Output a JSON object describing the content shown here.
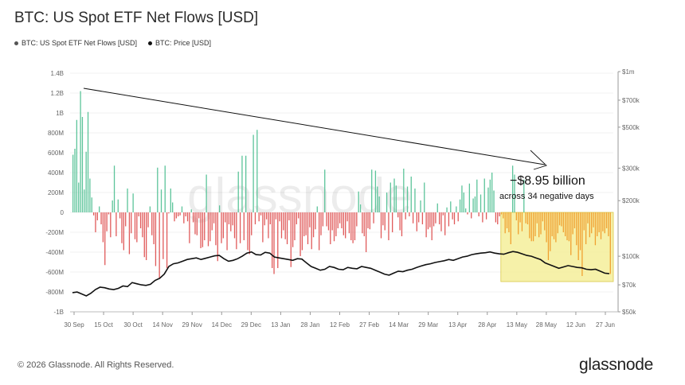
{
  "title": "BTC: US Spot ETF Net Flows [USD]",
  "legend": [
    {
      "label": "BTC: US Spot ETF Net Flows [USD]",
      "color": "#555555"
    },
    {
      "label": "BTC: Price [USD]",
      "color": "#111111"
    }
  ],
  "footer": "© 2026 Glassnode. All Rights Reserved.",
  "brand": "glassnode",
  "watermark": "glassnode",
  "annotation": {
    "main": "−$8.95 billion",
    "sub": "across 34 negative days"
  },
  "colors": {
    "positive": "#5cc49a",
    "negative": "#e05a5a",
    "highlight_bar": "#f0a030",
    "highlight_box": "#f5ef9a",
    "price": "#111111"
  },
  "chart_data": {
    "type": "bar",
    "title": "BTC: US Spot ETF Net Flows [USD]",
    "x_ticks": [
      "30 Sep",
      "15 Oct",
      "30 Oct",
      "14 Nov",
      "29 Nov",
      "14 Dec",
      "29 Dec",
      "13 Jan",
      "28 Jan",
      "12 Feb",
      "27 Feb",
      "14 Mar",
      "29 Mar",
      "13 Apr",
      "28 Apr",
      "13 May",
      "28 May",
      "12 Jun",
      "27 Jun"
    ],
    "y_left_ticks": [
      "1.4B",
      "1.2B",
      "1B",
      "800M",
      "600M",
      "400M",
      "200M",
      "0",
      "-200M",
      "-400M",
      "-600M",
      "-800M",
      "-1B"
    ],
    "y_left_range": [
      -1000000000,
      1400000000
    ],
    "y_right_ticks": [
      "$1m",
      "$700k",
      "$500k",
      "$300k",
      "$200k",
      "$100k",
      "$70k",
      "$50k"
    ],
    "y_right_scale": "log",
    "y_right_range": [
      50000,
      1000000
    ],
    "flows_musd": [
      580,
      640,
      930,
      300,
      1220,
      960,
      230,
      610,
      1010,
      340,
      150,
      -30,
      -200,
      -80,
      60,
      -120,
      -300,
      -530,
      -190,
      -20,
      -250,
      120,
      470,
      -240,
      130,
      -60,
      -310,
      -380,
      -140,
      240,
      -420,
      -210,
      190,
      -270,
      -300,
      -40,
      -160,
      -250,
      -450,
      -480,
      -150,
      60,
      -230,
      -320,
      -540,
      450,
      -670,
      230,
      -470,
      470,
      -560,
      -10,
      240,
      100,
      -90,
      -60,
      -40,
      -30,
      60,
      -110,
      -40,
      -90,
      -310,
      30,
      -100,
      -220,
      -230,
      -60,
      -360,
      -350,
      -280,
      380,
      -340,
      -290,
      -180,
      -110,
      -330,
      -490,
      70,
      -310,
      -260,
      -100,
      -380,
      -120,
      -190,
      -130,
      -260,
      -370,
      410,
      -310,
      570,
      -280,
      570,
      -380,
      -420,
      -230,
      780,
      -120,
      830,
      -90,
      -30,
      -300,
      -130,
      -70,
      -260,
      -120,
      -560,
      -620,
      -70,
      -560,
      -90,
      -260,
      -180,
      -270,
      -320,
      -80,
      -550,
      -350,
      -280,
      -120,
      -60,
      -440,
      -380,
      -240,
      -230,
      -320,
      -150,
      -370,
      -250,
      -170,
      60,
      -380,
      -230,
      -140,
      430,
      -140,
      -180,
      -320,
      -180,
      -290,
      -240,
      -160,
      -110,
      -160,
      -230,
      -260,
      -90,
      -210,
      -280,
      -310,
      -280,
      -140,
      210,
      80,
      -210,
      -240,
      -400,
      -160,
      -170,
      430,
      -110,
      420,
      260,
      160,
      -260,
      -130,
      -180,
      200,
      -280,
      300,
      -200,
      340,
      270,
      -50,
      -180,
      -240,
      440,
      -70,
      260,
      -40,
      360,
      -110,
      240,
      -190,
      -100,
      120,
      -120,
      300,
      -250,
      -170,
      -150,
      -280,
      -140,
      -110,
      90,
      -120,
      -190,
      -30,
      -230,
      50,
      -140,
      110,
      -70,
      -120,
      60,
      -90,
      130,
      270,
      200,
      40,
      -20,
      290,
      -60,
      140,
      160,
      330,
      -40,
      180,
      -100,
      340,
      -70,
      250,
      330,
      400,
      220,
      -100,
      -120,
      -40,
      -20,
      -60,
      -210,
      -160,
      -200,
      -320,
      470,
      380,
      -80,
      -220,
      -100,
      -190,
      330,
      -110,
      -120,
      -260,
      -290,
      -290,
      -240,
      -110,
      -250,
      -220,
      -90,
      -180,
      -300,
      -480,
      -390,
      -240,
      -270,
      -300,
      -210,
      -130,
      -140,
      -200,
      -240,
      -280,
      -290,
      -430,
      -220,
      -160,
      -330,
      -480,
      -380,
      -640,
      -180,
      -320,
      -110,
      -250,
      -210,
      -150,
      -330,
      -240,
      -200,
      -270,
      -190,
      -210,
      -160,
      -240,
      -620
    ],
    "price_usd": [
      63500,
      64000,
      62500,
      61000,
      63000,
      66000,
      68000,
      67500,
      66500,
      66000,
      67000,
      69000,
      68500,
      72000,
      71000,
      70000,
      69500,
      70500,
      74000,
      76000,
      80000,
      88000,
      91000,
      92000,
      94000,
      96000,
      97000,
      98000,
      96000,
      97500,
      99000,
      100500,
      101000,
      97000,
      94000,
      95000,
      97000,
      100000,
      104000,
      105500,
      102000,
      101500,
      105000,
      104000,
      99000,
      98000,
      97000,
      96000,
      95000,
      97000,
      96500,
      92000,
      88000,
      86000,
      84000,
      85000,
      88000,
      87000,
      85000,
      84500,
      87000,
      86000,
      85500,
      88000,
      87000,
      86000,
      84000,
      82000,
      80000,
      79000,
      81000,
      83000,
      82500,
      84000,
      85000,
      87000,
      88500,
      90000,
      91000,
      92500,
      93500,
      94500,
      96000,
      95000,
      97000,
      99000,
      100000,
      102000,
      103000,
      104000,
      104500,
      105500,
      104000,
      103000,
      102500,
      104500,
      106000,
      105000,
      103000,
      101000,
      100000,
      98000,
      96000,
      92000,
      90000,
      88000,
      86000,
      87500,
      89000,
      88000,
      87000,
      86500,
      85000,
      84500,
      85000,
      83000,
      81000,
      80500
    ]
  }
}
